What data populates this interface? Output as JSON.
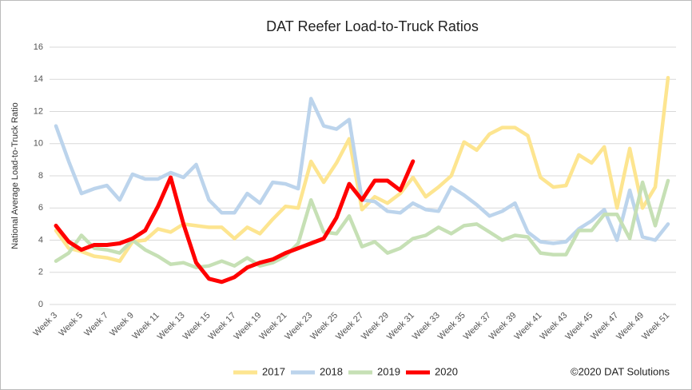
{
  "chart_data": {
    "type": "line",
    "title": "DAT Reefer Load-to-Truck Ratios",
    "y_label": "National Average Load-to-Truck Ratio",
    "credit": "©2020 DAT Solutions",
    "categories": [
      "Week 3",
      null,
      "Week 5",
      null,
      "Week 7",
      null,
      "Week 9",
      null,
      "Week 11",
      null,
      "Week 13",
      null,
      "Week 15",
      null,
      "Week 17",
      null,
      "Week 19",
      null,
      "Week 21",
      null,
      "Week 23",
      null,
      "Week 25",
      null,
      "Week 27",
      null,
      "Week 29",
      null,
      "Week 31",
      null,
      "Week 33",
      null,
      "Week 35",
      null,
      "Week 37",
      null,
      "Week 39",
      null,
      "Week 41",
      null,
      "Week 43",
      null,
      "Week 45",
      null,
      "Week 47",
      null,
      "Week 49",
      null,
      "Week 51"
    ],
    "series": [
      {
        "name": "2017",
        "color": "#fde590",
        "values": [
          4.6,
          3.5,
          3.3,
          3.0,
          2.9,
          2.7,
          3.9,
          4.0,
          4.7,
          4.5,
          5.0,
          4.9,
          4.8,
          4.8,
          4.1,
          4.8,
          4.4,
          5.3,
          6.1,
          6.0,
          8.9,
          7.6,
          8.8,
          10.3,
          5.9,
          6.7,
          6.3,
          6.9,
          7.9,
          6.7,
          7.3,
          8.0,
          10.1,
          9.6,
          10.6,
          11.0,
          11.0,
          10.5,
          7.9,
          7.3,
          7.4,
          9.3,
          8.8,
          9.8,
          6.0,
          9.7,
          6.0,
          7.3,
          14.1
        ]
      },
      {
        "name": "2018",
        "color": "#bcd4ec",
        "values": [
          11.1,
          8.9,
          6.9,
          7.2,
          7.4,
          6.5,
          8.1,
          7.8,
          7.8,
          8.2,
          7.9,
          8.7,
          6.5,
          5.7,
          5.7,
          6.9,
          6.3,
          7.6,
          7.5,
          7.2,
          12.8,
          11.1,
          10.9,
          11.5,
          6.5,
          6.4,
          5.8,
          5.7,
          6.3,
          5.9,
          5.8,
          7.3,
          6.8,
          6.2,
          5.5,
          5.8,
          6.3,
          4.5,
          3.9,
          3.8,
          3.9,
          4.7,
          5.2,
          5.9,
          4.0,
          7.1,
          4.2,
          4.0,
          5.0
        ]
      },
      {
        "name": "2019",
        "color": "#c6e0b5",
        "values": [
          2.7,
          3.2,
          4.3,
          3.5,
          3.4,
          3.2,
          4.0,
          3.4,
          3.0,
          2.5,
          2.6,
          2.3,
          2.4,
          2.7,
          2.4,
          2.9,
          2.4,
          2.6,
          3.0,
          3.8,
          6.5,
          4.5,
          4.4,
          5.5,
          3.6,
          3.9,
          3.2,
          3.5,
          4.1,
          4.3,
          4.8,
          4.4,
          4.9,
          5.0,
          4.5,
          4.0,
          4.3,
          4.2,
          3.2,
          3.1,
          3.1,
          4.6,
          4.6,
          5.6,
          5.6,
          4.1,
          7.6,
          4.9,
          7.7
        ]
      },
      {
        "name": "2020",
        "color": "#ff0000",
        "values": [
          4.9,
          3.9,
          3.4,
          3.7,
          3.7,
          3.8,
          4.1,
          4.6,
          6.1,
          7.9,
          5.0,
          2.6,
          1.6,
          1.4,
          1.7,
          2.3,
          2.6,
          2.8,
          3.2,
          3.5,
          3.8,
          4.1,
          5.4,
          7.5,
          6.5,
          7.7,
          7.7,
          7.1,
          8.9,
          null,
          null,
          null,
          null,
          null,
          null,
          null,
          null,
          null,
          null,
          null,
          null,
          null,
          null,
          null,
          null,
          null,
          null,
          null,
          null
        ]
      }
    ],
    "ylim": [
      0,
      16
    ],
    "yticks": [
      0,
      2,
      4,
      6,
      8,
      10,
      12,
      14,
      16
    ],
    "grid": true
  }
}
